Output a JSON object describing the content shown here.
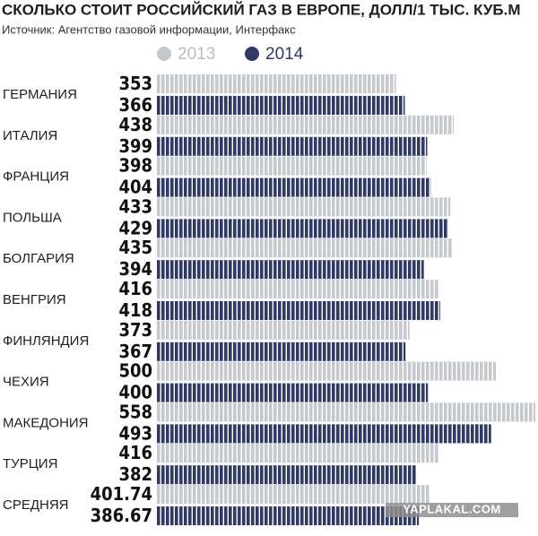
{
  "chart_data": {
    "type": "bar",
    "orientation": "horizontal",
    "title": "СКОЛЬКО СТОИТ РОССИЙСКИЙ ГАЗ В ЕВРОПЕ, ДОЛЛ/1 ТЫС. КУБ.М",
    "subtitle": "Источник: Агентство газовой информации, Интерфакс",
    "categories": [
      "ГЕРМАНИЯ",
      "ИТАЛИЯ",
      "ФРАНЦИЯ",
      "ПОЛЬША",
      "БОЛГАРИЯ",
      "ВЕНГРИЯ",
      "ФИНЛЯНДИЯ",
      "ЧЕХИЯ",
      "МАКЕДОНИЯ",
      "ТУРЦИЯ",
      "СРЕДНЯЯ"
    ],
    "series": [
      {
        "name": "2013",
        "color": "#c5c9cd",
        "values": [
          353,
          438,
          398,
          433,
          435,
          416,
          373,
          500,
          558,
          416,
          401.74
        ]
      },
      {
        "name": "2014",
        "color": "#2f3a68",
        "values": [
          366,
          399,
          404,
          429,
          394,
          418,
          367,
          400,
          493,
          382,
          386.67
        ]
      }
    ],
    "watermark": "YAPLAKAL.COM"
  }
}
